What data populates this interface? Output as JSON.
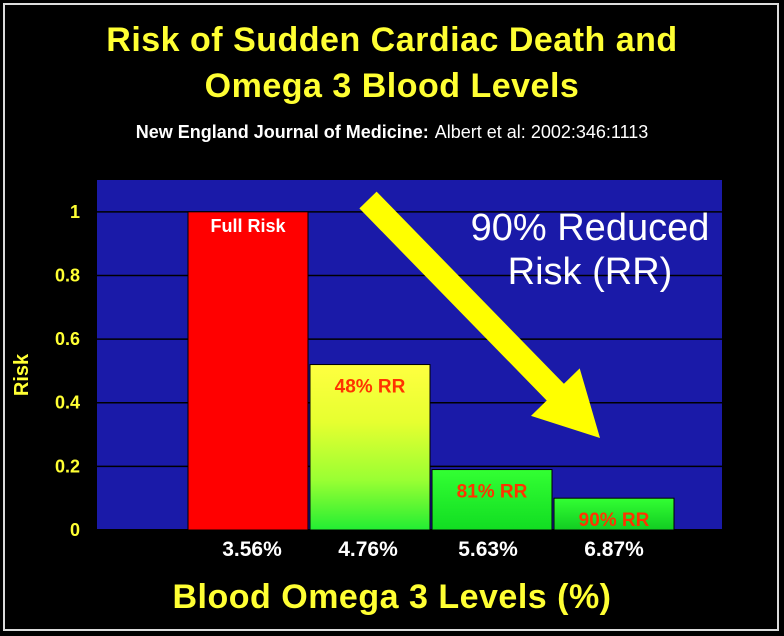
{
  "title_line1": "Risk of Sudden Cardiac Death and",
  "title_line2": "Omega 3 Blood Levels",
  "source_bold": "New England Journal of Medicine:",
  "source_normal": "Albert et al: 2002:346:1113",
  "annotation_line1": "90% Reduced",
  "annotation_line2": "Risk (RR)",
  "colors": {
    "plot_background": "#1a1aa8",
    "title": "#ffff33",
    "bar_full_risk": "#ff0000",
    "bar_label": "#ff3300",
    "arrow": "#ffff00"
  },
  "chart_data": {
    "type": "bar",
    "categories": [
      "3.56%",
      "4.76%",
      "5.63%",
      "6.87%"
    ],
    "values": [
      1.0,
      0.52,
      0.19,
      0.1
    ],
    "bar_labels": [
      "Full Risk",
      "48% RR",
      "81% RR",
      "90% RR"
    ],
    "xlabel": "Blood Omega 3 Levels (%)",
    "ylabel": "Risk",
    "ylim": [
      0,
      1.1
    ],
    "yticks": [
      "0",
      "0.2",
      "0.4",
      "0.6",
      "0.8",
      "1"
    ],
    "ytick_values": [
      0,
      0.2,
      0.4,
      0.6,
      0.8,
      1.0
    ],
    "grid": true,
    "legend": "none"
  }
}
